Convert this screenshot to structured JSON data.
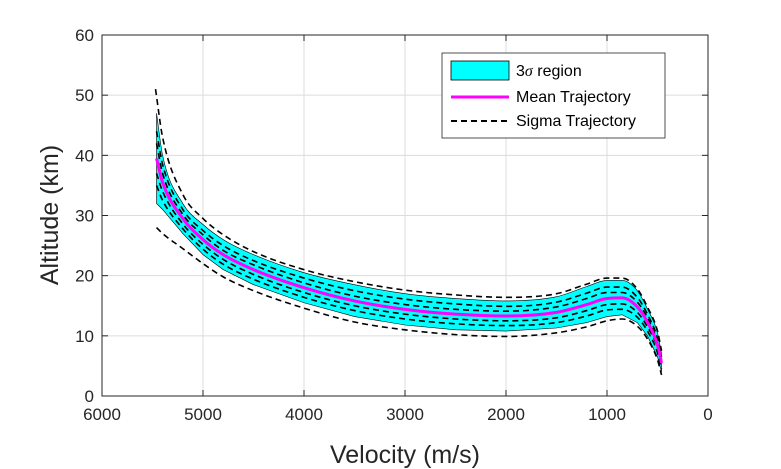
{
  "chart_data": {
    "type": "line",
    "xlabel": "Velocity (m/s)",
    "ylabel": "Altitude (km)",
    "xlim": [
      6000,
      0
    ],
    "ylim": [
      0,
      60
    ],
    "x_reversed": true,
    "x_ticks": [
      6000,
      5000,
      4000,
      3000,
      2000,
      1000,
      0
    ],
    "y_ticks": [
      0,
      10,
      20,
      30,
      40,
      50,
      60
    ],
    "x_tick_labels": [
      "6000",
      "5000",
      "4000",
      "3000",
      "2000",
      "1000",
      "0"
    ],
    "y_tick_labels": [
      "0",
      "10",
      "20",
      "30",
      "40",
      "50",
      "60"
    ],
    "grid": true,
    "legend_placement": "top-right",
    "legend": {
      "region_prefix": "3",
      "region_sigma": "σ",
      "region_suffix": " region",
      "mean": "Mean Trajectory",
      "sigma": "Sigma Trajectory"
    },
    "colors": {
      "region_fill": "#00FFFF",
      "mean": "#FF00FF",
      "sigma": "#000000"
    },
    "region": {
      "upper": [
        [
          5460,
          47
        ],
        [
          5400,
          40
        ],
        [
          5200,
          32
        ],
        [
          5000,
          28.5
        ],
        [
          4800,
          26
        ],
        [
          4500,
          23.5
        ],
        [
          4000,
          20.5
        ],
        [
          3500,
          18.5
        ],
        [
          3000,
          17
        ],
        [
          2500,
          16.2
        ],
        [
          2000,
          15.8
        ],
        [
          1500,
          16.5
        ],
        [
          1200,
          18.2
        ],
        [
          1000,
          19.2
        ],
        [
          850,
          19.2
        ],
        [
          700,
          17.5
        ],
        [
          600,
          14.5
        ],
        [
          500,
          10.5
        ],
        [
          460,
          7
        ]
      ],
      "lower": [
        [
          5460,
          32
        ],
        [
          5400,
          31
        ],
        [
          5200,
          27
        ],
        [
          5000,
          23.5
        ],
        [
          4800,
          21
        ],
        [
          4500,
          18.5
        ],
        [
          4000,
          15.5
        ],
        [
          3500,
          13.2
        ],
        [
          3000,
          11.8
        ],
        [
          2500,
          11
        ],
        [
          2000,
          10.8
        ],
        [
          1500,
          11.3
        ],
        [
          1200,
          12.2
        ],
        [
          1000,
          13.2
        ],
        [
          850,
          13.5
        ],
        [
          700,
          12.2
        ],
        [
          600,
          10
        ],
        [
          500,
          6.5
        ],
        [
          460,
          4
        ]
      ]
    },
    "mean_trajectory": [
      [
        5460,
        39.5
      ],
      [
        5400,
        35.5
      ],
      [
        5200,
        29.5
      ],
      [
        5000,
        26
      ],
      [
        4800,
        23.5
      ],
      [
        4500,
        21
      ],
      [
        4000,
        18
      ],
      [
        3500,
        15.8
      ],
      [
        3000,
        14.4
      ],
      [
        2500,
        13.6
      ],
      [
        2000,
        13.3
      ],
      [
        1500,
        13.9
      ],
      [
        1200,
        15.2
      ],
      [
        1000,
        16.2
      ],
      [
        850,
        16.3
      ],
      [
        700,
        14.8
      ],
      [
        600,
        12.3
      ],
      [
        500,
        8.5
      ],
      [
        460,
        5.5
      ]
    ],
    "sigma_trajectories": [
      {
        "points": [
          [
            5470,
            51
          ],
          [
            5400,
            43
          ],
          [
            5200,
            33.5
          ],
          [
            5000,
            29.5
          ],
          [
            4800,
            26.8
          ],
          [
            4500,
            24
          ],
          [
            4000,
            21
          ],
          [
            3500,
            19
          ],
          [
            3000,
            17.6
          ],
          [
            2500,
            16.8
          ],
          [
            2000,
            16.4
          ],
          [
            1500,
            17
          ],
          [
            1200,
            18.6
          ],
          [
            1000,
            19.6
          ],
          [
            850,
            19.6
          ],
          [
            700,
            17.8
          ],
          [
            600,
            14.8
          ],
          [
            500,
            10.8
          ],
          [
            460,
            7.5
          ]
        ]
      },
      {
        "points": [
          [
            5460,
            44
          ],
          [
            5400,
            38.5
          ],
          [
            5200,
            31
          ],
          [
            5000,
            27.5
          ],
          [
            4800,
            25
          ],
          [
            4500,
            22.5
          ],
          [
            4000,
            19.6
          ],
          [
            3500,
            17.5
          ],
          [
            3000,
            16.1
          ],
          [
            2500,
            15.3
          ],
          [
            2000,
            14.9
          ],
          [
            1500,
            15.6
          ],
          [
            1200,
            17.1
          ],
          [
            1000,
            18.1
          ],
          [
            850,
            18.1
          ],
          [
            700,
            16.4
          ],
          [
            600,
            13.6
          ],
          [
            500,
            9.6
          ],
          [
            460,
            6.5
          ]
        ]
      },
      {
        "points": [
          [
            5460,
            42
          ],
          [
            5400,
            37
          ],
          [
            5200,
            30.2
          ],
          [
            5000,
            26.8
          ],
          [
            4800,
            24.2
          ],
          [
            4500,
            21.8
          ],
          [
            4000,
            18.8
          ],
          [
            3500,
            16.6
          ],
          [
            3000,
            15.2
          ],
          [
            2500,
            14.4
          ],
          [
            2000,
            14.1
          ],
          [
            1500,
            14.8
          ],
          [
            1200,
            16.2
          ],
          [
            1000,
            17.2
          ],
          [
            850,
            17.2
          ],
          [
            700,
            15.6
          ],
          [
            600,
            13
          ],
          [
            500,
            9
          ],
          [
            460,
            6
          ]
        ]
      },
      {
        "points": [
          [
            5460,
            37
          ],
          [
            5400,
            34
          ],
          [
            5200,
            28.6
          ],
          [
            5000,
            25.2
          ],
          [
            4800,
            22.7
          ],
          [
            4500,
            20.2
          ],
          [
            4000,
            17.2
          ],
          [
            3500,
            15
          ],
          [
            3000,
            13.6
          ],
          [
            2500,
            12.8
          ],
          [
            2000,
            12.5
          ],
          [
            1500,
            13
          ],
          [
            1200,
            14.2
          ],
          [
            1000,
            15.2
          ],
          [
            850,
            15.3
          ],
          [
            700,
            13.9
          ],
          [
            600,
            11.5
          ],
          [
            500,
            8
          ],
          [
            460,
            5
          ]
        ]
      },
      {
        "points": [
          [
            5460,
            35
          ],
          [
            5400,
            32.5
          ],
          [
            5200,
            27.8
          ],
          [
            5000,
            24.4
          ],
          [
            4800,
            21.9
          ],
          [
            4500,
            19.4
          ],
          [
            4000,
            16.4
          ],
          [
            3500,
            14.2
          ],
          [
            3000,
            12.8
          ],
          [
            2500,
            12
          ],
          [
            2000,
            11.7
          ],
          [
            1500,
            12.2
          ],
          [
            1200,
            13.3
          ],
          [
            1000,
            14.3
          ],
          [
            850,
            14.4
          ],
          [
            700,
            13.1
          ],
          [
            600,
            10.8
          ],
          [
            500,
            7.2
          ],
          [
            460,
            4.5
          ]
        ]
      },
      {
        "points": [
          [
            5460,
            28
          ],
          [
            5400,
            27
          ],
          [
            5200,
            24.5
          ],
          [
            5000,
            22
          ],
          [
            4800,
            19.8
          ],
          [
            4500,
            17.5
          ],
          [
            4000,
            14.6
          ],
          [
            3500,
            12.3
          ],
          [
            3000,
            11
          ],
          [
            2500,
            10.2
          ],
          [
            2000,
            9.9
          ],
          [
            1500,
            10.5
          ],
          [
            1200,
            11.5
          ],
          [
            1000,
            12.5
          ],
          [
            850,
            12.8
          ],
          [
            700,
            11.6
          ],
          [
            600,
            9.5
          ],
          [
            500,
            6
          ],
          [
            460,
            3.5
          ]
        ]
      }
    ]
  }
}
